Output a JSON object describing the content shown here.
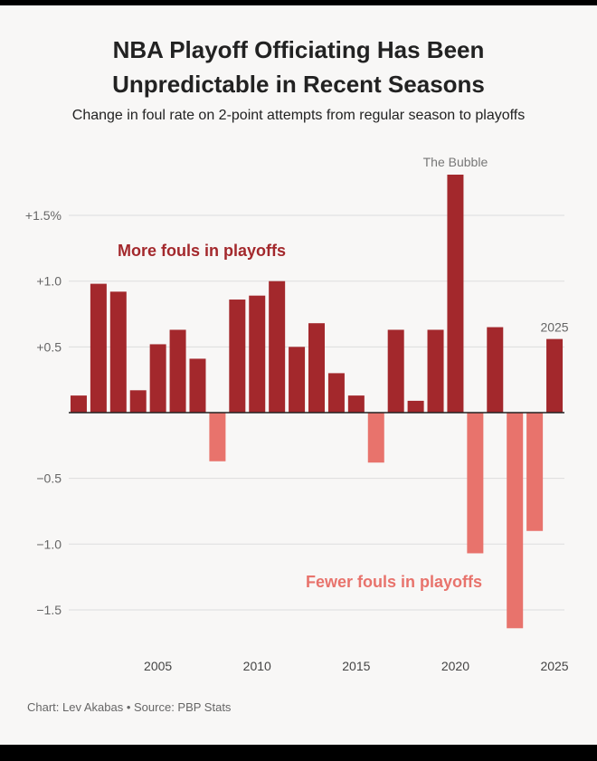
{
  "title_line1": "NBA Playoff Officiating Has Been",
  "title_line2": "Unpredictable in Recent Seasons",
  "subtitle": "Change in foul rate on 2-point attempts from regular season to playoffs",
  "footer": "Chart: Lev Akabas • Source: PBP Stats",
  "colors": {
    "positive": "#a3282c",
    "negative": "#e8736c",
    "grid": "#dddddd",
    "axis": "#222222"
  },
  "chart_data": {
    "type": "bar",
    "title": "NBA Playoff Officiating Has Been Unpredictable in Recent Seasons",
    "subtitle": "Change in foul rate on 2-point attempts from regular season to playoffs",
    "x": [
      2001,
      2002,
      2003,
      2004,
      2005,
      2006,
      2007,
      2008,
      2009,
      2010,
      2011,
      2012,
      2013,
      2014,
      2015,
      2016,
      2017,
      2018,
      2019,
      2020,
      2021,
      2022,
      2023,
      2024,
      2025
    ],
    "values": [
      0.13,
      0.98,
      0.92,
      0.17,
      0.52,
      0.63,
      0.41,
      -0.37,
      0.86,
      0.89,
      1.0,
      0.5,
      0.68,
      0.3,
      0.13,
      -0.38,
      0.63,
      0.09,
      0.63,
      1.81,
      -1.07,
      0.65,
      -1.64,
      -0.9,
      0.56
    ],
    "ylim": [
      -1.75,
      1.85
    ],
    "y_ticks": [
      1.5,
      1.0,
      0.5,
      -0.5,
      -1.0,
      -1.5
    ],
    "y_tick_labels": [
      "+1.5%",
      "+1.0",
      "+0.5",
      "−0.5",
      "−1.0",
      "−1.5"
    ],
    "x_ticks": [
      2005,
      2010,
      2015,
      2020,
      2025
    ],
    "x_tick_labels": [
      "2005",
      "2010",
      "2015",
      "2020",
      "2025"
    ],
    "grid": true,
    "annotations": [
      {
        "text": "The Bubble",
        "x": 2020
      },
      {
        "text": "2025",
        "x": 2025
      },
      {
        "text": "More fouls in playoffs"
      },
      {
        "text": "Fewer fouls in playoffs"
      }
    ]
  }
}
